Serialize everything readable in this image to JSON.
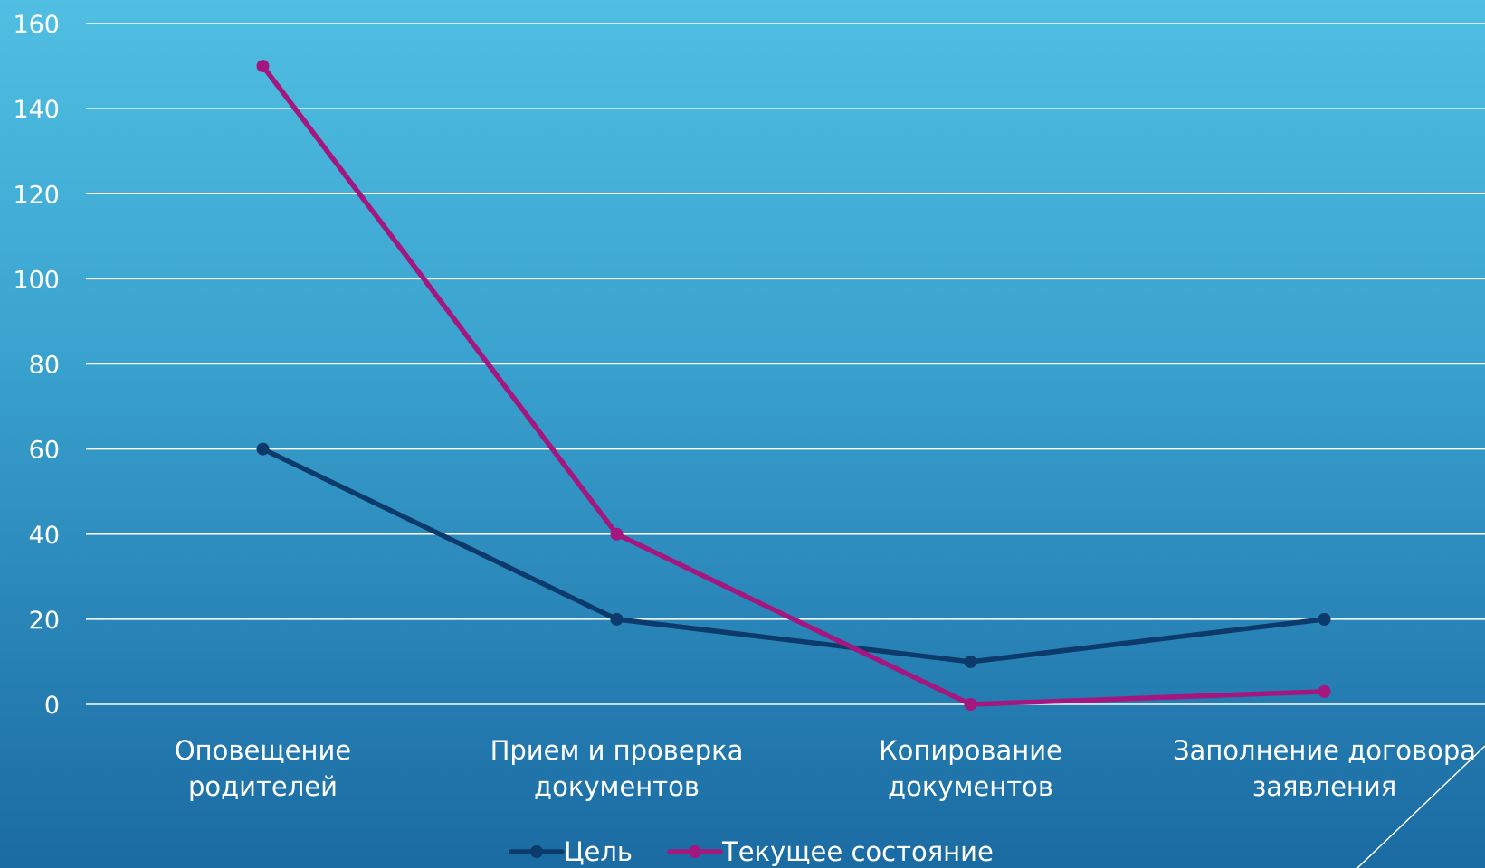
{
  "chart_data": {
    "type": "line",
    "categories": [
      [
        "Оповещение",
        "родителей"
      ],
      [
        "Прием и проверка",
        "документов"
      ],
      [
        "Копирование",
        "документов"
      ],
      [
        "Заполнение договора",
        "заявления"
      ]
    ],
    "series": [
      {
        "name": "Цель",
        "values": [
          60,
          20,
          10,
          20
        ],
        "color": "#0b3a6b"
      },
      {
        "name": "Текущее состояние",
        "values": [
          150,
          40,
          0,
          3
        ],
        "color": "#a3177f"
      }
    ],
    "yticks": [
      0,
      20,
      40,
      60,
      80,
      100,
      120,
      140,
      160
    ],
    "ylim": [
      0,
      160
    ],
    "grid": true,
    "legend_position": "bottom"
  }
}
